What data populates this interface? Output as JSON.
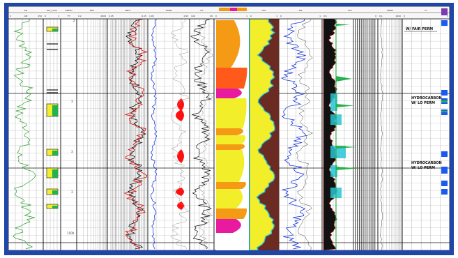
{
  "tracks": [
    {
      "key": "gr",
      "header": "GR",
      "scale_left": "0",
      "scale_mid": "API",
      "scale_right": "150"
    },
    {
      "key": "flag",
      "header": "PAY_FLAG",
      "scale_left": "0",
      "scale_mid": "",
      "scale_right": "1"
    },
    {
      "key": "depth",
      "header": "DEPTH",
      "scale_left": "",
      "scale_mid": "FT",
      "scale_right": ""
    },
    {
      "key": "res",
      "header": "RES",
      "scale_left": "0.2",
      "scale_mid": "",
      "scale_right": "2000"
    },
    {
      "key": "nphi",
      "header": "NPHI",
      "scale_left": "0.45",
      "scale_mid": "",
      "scale_right": "-0.15"
    },
    {
      "key": "rhob",
      "header": "RHOB",
      "scale_left": "1.95",
      "scale_mid": "",
      "scale_right": "2.95"
    },
    {
      "key": "dt",
      "header": "DT",
      "scale_left": "140",
      "scale_mid": "",
      "scale_right": "40"
    },
    {
      "key": "litho",
      "header": "",
      "scale_left": "0",
      "scale_mid": "",
      "scale_right": "1"
    },
    {
      "key": "vol",
      "header": "VOL",
      "scale_left": "0",
      "scale_mid": "",
      "scale_right": "1"
    },
    {
      "key": "sw",
      "header": "SW",
      "scale_left": "0",
      "scale_mid": "",
      "scale_right": "1"
    },
    {
      "key": "phi",
      "header": "PHI",
      "scale_left": "0.5",
      "scale_mid": "",
      "scale_right": "0"
    },
    {
      "key": "perm",
      "header": "PERM",
      "scale_left": "0.1",
      "scale_mid": "",
      "scale_right": "1000"
    },
    {
      "key": "fl",
      "header": "FL",
      "scale_left": "0",
      "scale_mid": "",
      "scale_right": "1"
    }
  ],
  "depth_labels": [
    "2",
    "3",
    "3",
    "3",
    "1100"
  ],
  "annotations": [
    {
      "label": "W/ FAIR PERM"
    },
    {
      "label": "HYDROCARBON",
      "label2": "W/ LO PERM"
    },
    {
      "label": "HYDROCARBON",
      "label2": "W/ LO PERM"
    }
  ],
  "colors": {
    "frame": "#2046a8",
    "gamma": "#2e9e2e",
    "resistivity": "#d62020",
    "neutron": "#1a3ad6",
    "density": "#111111",
    "highlight_red": "#ff1010",
    "sand_yellow": "#f2ef2a",
    "orange": "#f59a14",
    "magenta": "#e81aa0",
    "shale_brown": "#6b2a22",
    "cyan": "#27c4d6",
    "blue_bars": "#1a5af0",
    "green_fill": "#27b04e"
  }
}
